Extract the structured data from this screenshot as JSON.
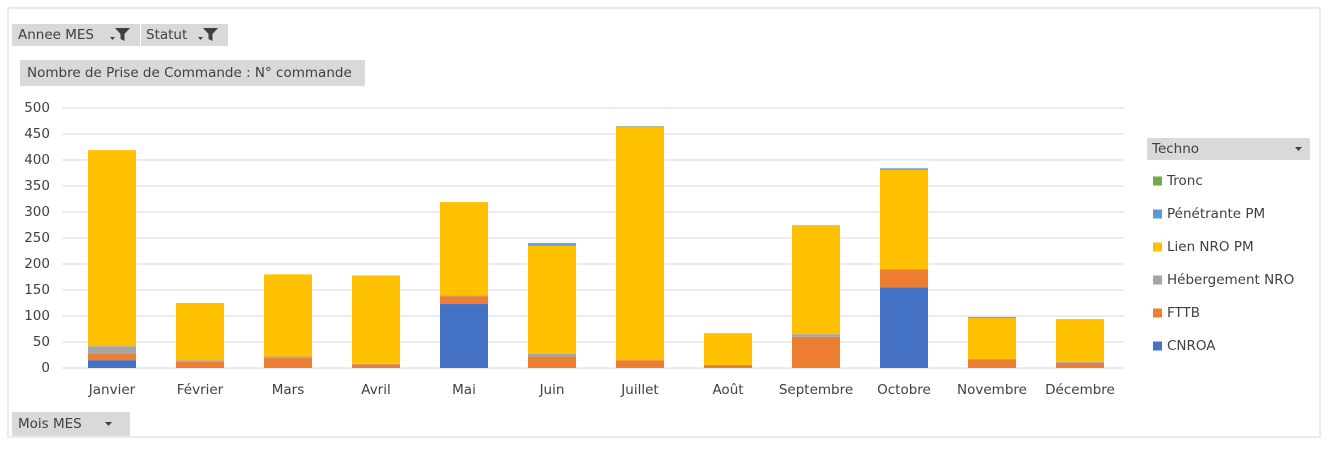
{
  "chart_data": {
    "type": "stacked_bar",
    "filters": [
      "Annee MES",
      "Statut"
    ],
    "value_field": "Nombre de Prise de Commande : N° commande",
    "axis_field": "Mois MES",
    "legend_title": "Techno",
    "categories": [
      "Janvier",
      "Février",
      "Mars",
      "Avril",
      "Mai",
      "Juin",
      "Juillet",
      "Août",
      "Septembre",
      "Octobre",
      "Novembre",
      "Décembre"
    ],
    "series": [
      {
        "name": "CNROA",
        "color": "#4472c4",
        "values": [
          15,
          0,
          0,
          0,
          123,
          0,
          0,
          0,
          0,
          155,
          0,
          0
        ]
      },
      {
        "name": "FTTB",
        "color": "#ed7d31",
        "values": [
          12,
          12,
          19,
          7,
          15,
          22,
          15,
          6,
          60,
          35,
          17,
          10
        ]
      },
      {
        "name": "Hébergement NRO",
        "color": "#a5a5a5",
        "values": [
          15,
          3,
          3,
          1,
          2,
          5,
          0,
          0,
          5,
          0,
          0,
          2
        ]
      },
      {
        "name": "Lien NRO PM",
        "color": "#ffc000",
        "values": [
          377,
          110,
          158,
          170,
          179,
          208,
          448,
          61,
          208,
          191,
          79,
          82
        ]
      },
      {
        "name": "Pénétrante PM",
        "color": "#5b9bd5",
        "values": [
          0,
          0,
          0,
          0,
          0,
          5,
          1,
          0,
          1,
          3,
          1,
          0
        ]
      },
      {
        "name": "Tronc",
        "color": "#70ad47",
        "values": [
          0,
          0,
          0,
          0,
          0,
          0,
          1,
          0,
          0,
          0,
          1,
          0
        ]
      }
    ],
    "ylim": [
      0,
      500
    ],
    "yticks": [
      0,
      50,
      100,
      150,
      200,
      250,
      300,
      350,
      400,
      450,
      500
    ],
    "grid": true
  }
}
